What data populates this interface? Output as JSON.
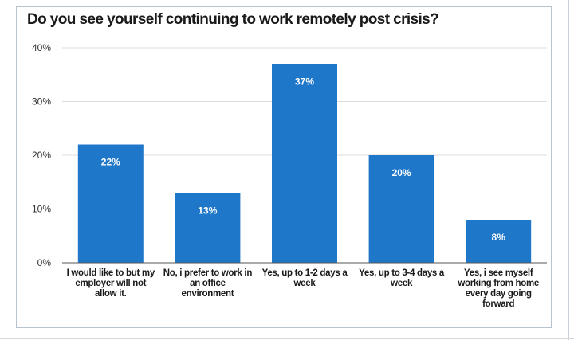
{
  "chart_data": {
    "type": "bar",
    "title": "Do you see yourself continuing to work remotely post crisis?",
    "categories": [
      "I would like to but my employer will not allow it.",
      "No, i prefer to work in an office environment",
      "Yes, up to 1-2 days a week",
      "Yes, up to 3-4 days a week",
      "Yes, i see myself working from home every day going forward"
    ],
    "values": [
      22,
      13,
      37,
      20,
      8
    ],
    "value_labels": [
      "22%",
      "13%",
      "37%",
      "20%",
      "8%"
    ],
    "ylim": [
      0,
      40
    ],
    "yticks": [
      0,
      10,
      20,
      30,
      40
    ],
    "ytick_labels": [
      "0%",
      "10%",
      "20%",
      "30%",
      "40%"
    ],
    "grid": true,
    "bar_color": "#1f77c9",
    "grid_color": "#dcdcdc",
    "axis_color": "#555555"
  }
}
